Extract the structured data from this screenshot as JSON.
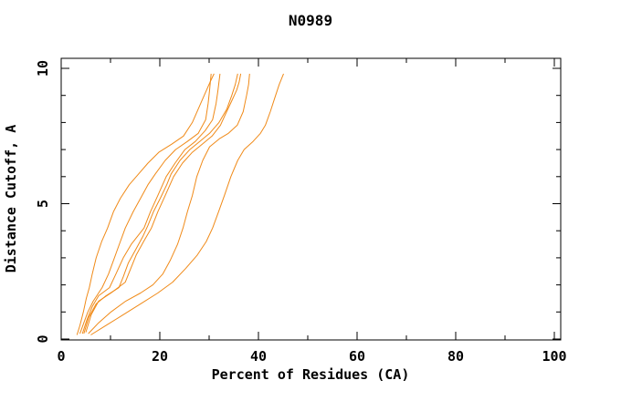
{
  "chart_data": {
    "type": "line",
    "title": "N0989",
    "xlabel": "Percent of Residues (CA)",
    "ylabel": "Distance Cutoff, A",
    "xlim": [
      0,
      101.3
    ],
    "ylim": [
      -0.05,
      10.4
    ],
    "grid": false,
    "legend": "none",
    "x_major_ticks": [
      0,
      20,
      40,
      60,
      80,
      100
    ],
    "x_minor_ticks": [
      10,
      30,
      50,
      70,
      90
    ],
    "y_major_ticks": [
      0,
      5,
      10
    ],
    "y_minor_ticks": [
      1,
      2,
      3,
      4,
      6,
      7,
      8,
      9
    ],
    "line_color": "#f08a18",
    "axis_color": "#000000",
    "background_color": "#ffffff",
    "series": [
      {
        "name": "curve-1",
        "points": [
          [
            3.2,
            0.15
          ],
          [
            3.8,
            0.5
          ],
          [
            4.5,
            1.0
          ],
          [
            5.1,
            1.5
          ],
          [
            5.7,
            1.9
          ],
          [
            6.3,
            2.4
          ],
          [
            7.1,
            3.0
          ],
          [
            8.2,
            3.6
          ],
          [
            9.4,
            4.1
          ],
          [
            10.6,
            4.7
          ],
          [
            12.0,
            5.2
          ],
          [
            13.8,
            5.7
          ],
          [
            15.7,
            6.1
          ],
          [
            17.6,
            6.5
          ],
          [
            19.8,
            6.9
          ],
          [
            22.4,
            7.2
          ],
          [
            24.8,
            7.5
          ],
          [
            26.6,
            8.0
          ],
          [
            27.8,
            8.5
          ],
          [
            29.0,
            9.0
          ],
          [
            30.2,
            9.5
          ],
          [
            31.0,
            9.8
          ]
        ]
      },
      {
        "name": "curve-2",
        "points": [
          [
            3.8,
            0.2
          ],
          [
            4.6,
            0.6
          ],
          [
            5.4,
            1.0
          ],
          [
            6.5,
            1.4
          ],
          [
            8.3,
            1.9
          ],
          [
            9.6,
            2.4
          ],
          [
            10.6,
            2.9
          ],
          [
            11.6,
            3.4
          ],
          [
            13.0,
            4.1
          ],
          [
            14.6,
            4.7
          ],
          [
            16.1,
            5.2
          ],
          [
            17.6,
            5.7
          ],
          [
            19.1,
            6.1
          ],
          [
            21.1,
            6.6
          ],
          [
            23.2,
            7.0
          ],
          [
            25.6,
            7.3
          ],
          [
            27.8,
            7.6
          ],
          [
            29.3,
            8.1
          ],
          [
            29.8,
            8.7
          ],
          [
            30.1,
            9.2
          ],
          [
            30.4,
            9.8
          ]
        ]
      },
      {
        "name": "curve-3",
        "points": [
          [
            4.3,
            0.2
          ],
          [
            5.2,
            0.7
          ],
          [
            6.3,
            1.2
          ],
          [
            7.6,
            1.6
          ],
          [
            9.8,
            1.9
          ],
          [
            11.1,
            2.4
          ],
          [
            12.6,
            3.0
          ],
          [
            14.2,
            3.5
          ],
          [
            16.8,
            4.1
          ],
          [
            18.1,
            4.7
          ],
          [
            19.6,
            5.3
          ],
          [
            21.3,
            6.0
          ],
          [
            23.1,
            6.5
          ],
          [
            25.1,
            7.0
          ],
          [
            27.2,
            7.3
          ],
          [
            29.2,
            7.7
          ],
          [
            30.7,
            8.1
          ],
          [
            31.4,
            8.7
          ],
          [
            31.8,
            9.2
          ],
          [
            32.2,
            9.8
          ]
        ]
      },
      {
        "name": "curve-4",
        "points": [
          [
            4.6,
            0.2
          ],
          [
            5.6,
            0.8
          ],
          [
            7.1,
            1.3
          ],
          [
            9.1,
            1.6
          ],
          [
            11.7,
            1.9
          ],
          [
            12.6,
            2.3
          ],
          [
            13.6,
            2.8
          ],
          [
            15.1,
            3.3
          ],
          [
            16.6,
            3.8
          ],
          [
            17.6,
            4.2
          ],
          [
            18.7,
            4.7
          ],
          [
            20.1,
            5.2
          ],
          [
            21.4,
            5.7
          ],
          [
            22.3,
            6.1
          ],
          [
            24.1,
            6.6
          ],
          [
            26.1,
            7.0
          ],
          [
            28.1,
            7.3
          ],
          [
            30.1,
            7.6
          ],
          [
            32.0,
            8.0
          ],
          [
            33.6,
            8.5
          ],
          [
            34.6,
            9.0
          ],
          [
            35.3,
            9.4
          ],
          [
            35.8,
            9.8
          ]
        ]
      },
      {
        "name": "curve-5",
        "points": [
          [
            5.0,
            0.25
          ],
          [
            6.1,
            0.9
          ],
          [
            7.6,
            1.4
          ],
          [
            10.1,
            1.7
          ],
          [
            13.0,
            2.1
          ],
          [
            14.1,
            2.6
          ],
          [
            15.2,
            3.1
          ],
          [
            16.7,
            3.6
          ],
          [
            18.3,
            4.1
          ],
          [
            19.6,
            4.7
          ],
          [
            21.1,
            5.3
          ],
          [
            22.8,
            6.0
          ],
          [
            24.6,
            6.5
          ],
          [
            26.6,
            6.9
          ],
          [
            28.6,
            7.2
          ],
          [
            30.6,
            7.5
          ],
          [
            32.3,
            7.9
          ],
          [
            33.3,
            8.3
          ],
          [
            34.6,
            8.8
          ],
          [
            35.6,
            9.2
          ],
          [
            36.1,
            9.5
          ],
          [
            36.4,
            9.8
          ]
        ]
      },
      {
        "name": "curve-6",
        "points": [
          [
            5.5,
            0.2
          ],
          [
            7.6,
            0.6
          ],
          [
            10.1,
            1.0
          ],
          [
            13.1,
            1.4
          ],
          [
            16.1,
            1.7
          ],
          [
            18.6,
            2.0
          ],
          [
            20.6,
            2.4
          ],
          [
            22.1,
            2.9
          ],
          [
            23.6,
            3.5
          ],
          [
            24.7,
            4.1
          ],
          [
            25.6,
            4.7
          ],
          [
            26.6,
            5.3
          ],
          [
            27.5,
            6.0
          ],
          [
            28.7,
            6.6
          ],
          [
            30.1,
            7.1
          ],
          [
            32.1,
            7.4
          ],
          [
            33.9,
            7.6
          ],
          [
            35.7,
            7.9
          ],
          [
            36.9,
            8.4
          ],
          [
            37.6,
            9.0
          ],
          [
            38.0,
            9.4
          ],
          [
            38.2,
            9.8
          ]
        ]
      },
      {
        "name": "curve-7",
        "points": [
          [
            6.0,
            0.15
          ],
          [
            9.1,
            0.5
          ],
          [
            12.6,
            0.9
          ],
          [
            16.1,
            1.3
          ],
          [
            19.6,
            1.7
          ],
          [
            22.6,
            2.1
          ],
          [
            25.2,
            2.6
          ],
          [
            27.6,
            3.1
          ],
          [
            29.4,
            3.6
          ],
          [
            30.7,
            4.1
          ],
          [
            31.9,
            4.7
          ],
          [
            33.1,
            5.3
          ],
          [
            34.4,
            6.0
          ],
          [
            35.8,
            6.6
          ],
          [
            37.1,
            7.0
          ],
          [
            38.9,
            7.3
          ],
          [
            40.4,
            7.6
          ],
          [
            41.4,
            7.9
          ],
          [
            42.4,
            8.4
          ],
          [
            43.3,
            8.9
          ],
          [
            44.2,
            9.4
          ],
          [
            45.1,
            9.8
          ]
        ]
      }
    ]
  }
}
